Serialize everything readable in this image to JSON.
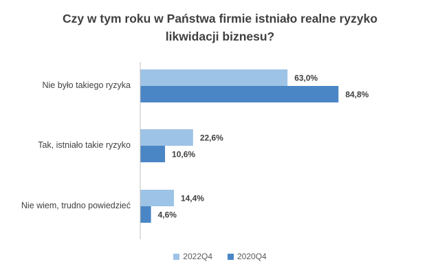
{
  "chart_data": {
    "type": "bar",
    "orientation": "horizontal",
    "title_lines": [
      "Czy w tym roku w Państwa firmie istniało realne ryzyko",
      "likwidacji biznesu?"
    ],
    "categories": [
      "Nie było takiego ryzyka",
      "Tak, istniało takie ryzyko",
      "Nie wiem, trudno powiedzieć"
    ],
    "series": [
      {
        "name": "2022Q4",
        "values": [
          63.0,
          22.6,
          14.4
        ],
        "labels": [
          "63,0%",
          "22,6%",
          "14,4%"
        ],
        "color": "#9dc3e6"
      },
      {
        "name": "2020Q4",
        "values": [
          84.8,
          10.6,
          4.6
        ],
        "labels": [
          "84,8%",
          "10,6%",
          "4,6%"
        ],
        "color": "#4a86c5"
      }
    ],
    "xlim": [
      0,
      100
    ],
    "grid": false,
    "legend_position": "bottom"
  }
}
